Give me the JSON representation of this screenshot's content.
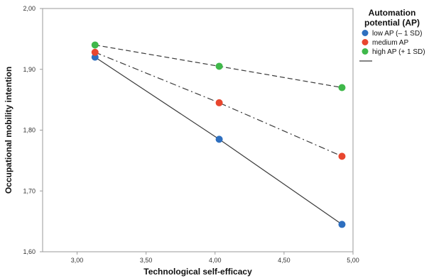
{
  "chart_data": {
    "type": "line",
    "xlabel": "Technological self-efficacy",
    "ylabel": "Occupational mobility intention",
    "xlim": [
      2.75,
      5.0
    ],
    "ylim": [
      1.6,
      2.0
    ],
    "x_ticks": [
      "3,00",
      "3,50",
      "4,00",
      "4,50",
      "5,00"
    ],
    "x_tick_values": [
      3.0,
      3.5,
      4.0,
      4.5,
      5.0
    ],
    "y_ticks": [
      "1,60",
      "1,70",
      "1,80",
      "1,90",
      "2,00"
    ],
    "y_tick_values": [
      1.6,
      1.7,
      1.8,
      1.9,
      2.0
    ],
    "legend_title_lines": [
      "Automation",
      "potential (AP)"
    ],
    "legend_position": "top-right",
    "grid": false,
    "series": [
      {
        "name": "low AP (– 1 SD)",
        "color": "#2e6fbf",
        "line_style": "solid",
        "x": [
          3.13,
          4.03,
          4.92
        ],
        "y": [
          1.92,
          1.785,
          1.645
        ]
      },
      {
        "name": "medium AP",
        "color": "#e8462e",
        "line_style": "dashdot",
        "x": [
          3.13,
          4.03,
          4.92
        ],
        "y": [
          1.928,
          1.845,
          1.757
        ]
      },
      {
        "name": "high AP (+ 1 SD)",
        "color": "#3fb84a",
        "line_style": "dashed",
        "x": [
          3.13,
          4.03,
          4.92
        ],
        "y": [
          1.94,
          1.905,
          1.87
        ]
      }
    ]
  }
}
